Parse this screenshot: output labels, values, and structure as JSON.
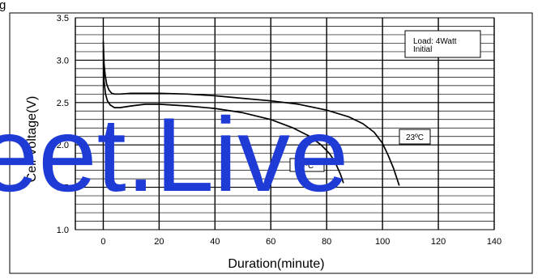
{
  "header": {
    "title_fragment": "g"
  },
  "watermark": {
    "text": "eet.Live",
    "color": "#1f3bd6"
  },
  "chart_data": {
    "type": "line",
    "xlabel": "Duration(minute)",
    "ylabel": "Cell Voltage(V)",
    "xlim": [
      -10,
      140
    ],
    "ylim": [
      1.0,
      3.5
    ],
    "x_ticks": [
      0,
      20,
      40,
      60,
      80,
      100,
      120,
      140
    ],
    "y_ticks": [
      1.0,
      1.5,
      2.0,
      2.5,
      3.0,
      3.5
    ],
    "x_tick_labels": [
      "0",
      "20",
      "40",
      "60",
      "80",
      "100",
      "120",
      "140"
    ],
    "y_tick_labels": [
      "1.0",
      "1.5",
      "2.0",
      "2.5",
      "3.0",
      "3.5"
    ],
    "y_minor_step": 0.1,
    "x_grid_lines": [
      -10,
      0,
      20,
      40,
      60,
      80,
      100,
      120,
      140
    ],
    "grid": true,
    "legend_box": {
      "line1": "Load: 4Watt",
      "line2": "Initial"
    },
    "series": [
      {
        "name": "23ºC",
        "x": [
          0,
          0.3,
          0.7,
          1.2,
          2,
          3,
          4,
          6,
          10,
          20,
          30,
          40,
          50,
          60,
          70,
          80,
          88,
          93,
          97,
          100,
          102,
          104,
          106
        ],
        "y": [
          3.22,
          2.95,
          2.82,
          2.72,
          2.65,
          2.61,
          2.6,
          2.6,
          2.61,
          2.61,
          2.6,
          2.58,
          2.55,
          2.52,
          2.48,
          2.41,
          2.33,
          2.25,
          2.15,
          2.02,
          1.88,
          1.72,
          1.52
        ],
        "color": "#000000"
      },
      {
        "name": "0ºC",
        "x": [
          0,
          0.3,
          0.8,
          1.5,
          2.5,
          4,
          6,
          10,
          15,
          20,
          30,
          40,
          50,
          60,
          68,
          74,
          78,
          81,
          83,
          85,
          86
        ],
        "y": [
          3.12,
          2.75,
          2.6,
          2.52,
          2.47,
          2.44,
          2.44,
          2.46,
          2.48,
          2.48,
          2.46,
          2.43,
          2.38,
          2.3,
          2.2,
          2.1,
          2.0,
          1.9,
          1.8,
          1.65,
          1.55
        ],
        "color": "#000000"
      }
    ],
    "annotations": [
      {
        "text": "23ºC",
        "x": 101,
        "y": 2.05
      },
      {
        "text": "0ºC",
        "x": 69,
        "y": 1.74
      }
    ]
  }
}
